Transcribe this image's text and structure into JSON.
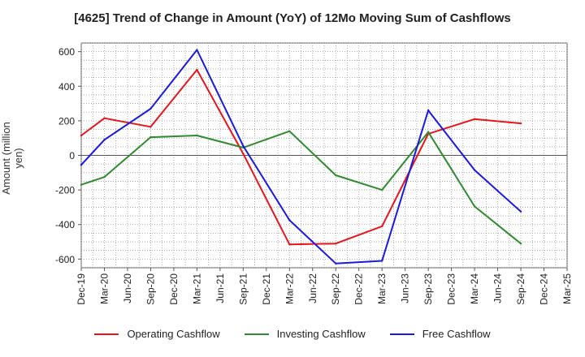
{
  "chart_data": {
    "type": "line",
    "title": "[4625]  Trend of Change in Amount (YoY) of 12Mo Moving Sum of Cashflows",
    "xlabel": "",
    "ylabel": "Amount (million yen)",
    "ylim": [
      -650,
      650
    ],
    "yticks": [
      600,
      400,
      200,
      0,
      -200,
      -400,
      -600
    ],
    "ytick_labels": [
      "600",
      "400",
      "200",
      "0",
      "-200",
      "-400",
      "-600"
    ],
    "categories": [
      "Dec-19",
      "Mar-20",
      "Jun-20",
      "Sep-20",
      "Dec-20",
      "Mar-21",
      "Jun-21",
      "Sep-21",
      "Dec-21",
      "Mar-22",
      "Jun-22",
      "Sep-22",
      "Dec-22",
      "Mar-23",
      "Jun-23",
      "Sep-23",
      "Dec-23",
      "Mar-24",
      "Jun-24",
      "Sep-24",
      "Dec-24",
      "Mar-25"
    ],
    "grid": true,
    "legend_position": "bottom",
    "series": [
      {
        "name": "Operating Cashflow",
        "color": "#e8141b",
        "values": [
          115,
          215,
          null,
          165,
          null,
          495,
          null,
          10,
          null,
          -515,
          null,
          -510,
          null,
          -410,
          null,
          125,
          null,
          210,
          null,
          185,
          null,
          null
        ]
      },
      {
        "name": "Investing Cashflow",
        "color": "#2e8b2e",
        "values": [
          -170,
          -125,
          null,
          105,
          null,
          115,
          null,
          45,
          null,
          140,
          null,
          -115,
          null,
          -200,
          null,
          135,
          null,
          -295,
          null,
          -510,
          null,
          null
        ]
      },
      {
        "name": "Free Cashflow",
        "color": "#1a1adf",
        "values": [
          -55,
          90,
          null,
          270,
          null,
          610,
          null,
          55,
          null,
          -375,
          null,
          -625,
          null,
          -610,
          null,
          260,
          null,
          -85,
          null,
          -325,
          null,
          null
        ]
      }
    ]
  }
}
